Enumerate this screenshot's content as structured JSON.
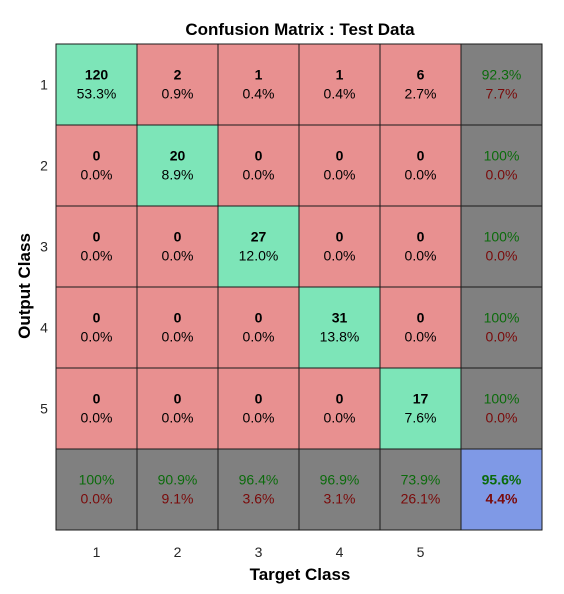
{
  "chart_data": {
    "type": "heatmap",
    "title": "Confusion Matrix : Test Data",
    "xlabel": "Target Class",
    "ylabel": "Output Class",
    "x_ticks": [
      "1",
      "2",
      "3",
      "4",
      "5"
    ],
    "y_ticks": [
      "1",
      "2",
      "3",
      "4",
      "5"
    ],
    "matrix": [
      {
        "counts": [
          "120",
          "2",
          "1",
          "1",
          "6"
        ],
        "percents": [
          "53.3%",
          "0.9%",
          "0.4%",
          "0.4%",
          "2.7%"
        ]
      },
      {
        "counts": [
          "0",
          "20",
          "0",
          "0",
          "0"
        ],
        "percents": [
          "0.0%",
          "8.9%",
          "0.0%",
          "0.0%",
          "0.0%"
        ]
      },
      {
        "counts": [
          "0",
          "0",
          "27",
          "0",
          "0"
        ],
        "percents": [
          "0.0%",
          "0.0%",
          "12.0%",
          "0.0%",
          "0.0%"
        ]
      },
      {
        "counts": [
          "0",
          "0",
          "0",
          "31",
          "0"
        ],
        "percents": [
          "0.0%",
          "0.0%",
          "0.0%",
          "13.8%",
          "0.0%"
        ]
      },
      {
        "counts": [
          "0",
          "0",
          "0",
          "0",
          "17"
        ],
        "percents": [
          "0.0%",
          "0.0%",
          "0.0%",
          "0.0%",
          "7.6%"
        ]
      }
    ],
    "row_summary": [
      {
        "correct": "92.3%",
        "wrong": "7.7%"
      },
      {
        "correct": "100%",
        "wrong": "0.0%"
      },
      {
        "correct": "100%",
        "wrong": "0.0%"
      },
      {
        "correct": "100%",
        "wrong": "0.0%"
      },
      {
        "correct": "100%",
        "wrong": "0.0%"
      }
    ],
    "col_summary": [
      {
        "correct": "100%",
        "wrong": "0.0%"
      },
      {
        "correct": "90.9%",
        "wrong": "9.1%"
      },
      {
        "correct": "96.4%",
        "wrong": "3.6%"
      },
      {
        "correct": "96.9%",
        "wrong": "3.1%"
      },
      {
        "correct": "73.9%",
        "wrong": "26.1%"
      }
    ],
    "overall": {
      "correct": "95.6%",
      "wrong": "4.4%"
    },
    "colors": {
      "diagonal": "#7de5b8",
      "off_diagonal": "#e89090",
      "summary": "#808080",
      "overall": "#7f99e6",
      "correct_text": "#0b6b0b",
      "wrong_text": "#7a0a0a"
    }
  }
}
